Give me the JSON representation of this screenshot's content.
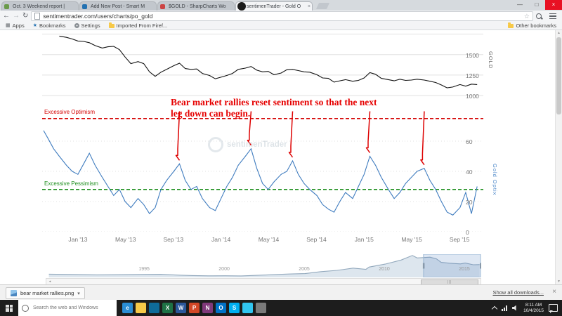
{
  "browser": {
    "tabs": [
      {
        "title": "Oct. 3 Weekend report |",
        "favicon_color": "#6a9a4a",
        "favicon_round": false,
        "active": false
      },
      {
        "title": "Add New Post - Smart M",
        "favicon_color": "#2271b1",
        "favicon_round": false,
        "active": false
      },
      {
        "title": "$GOLD - SharpCharts Wo",
        "favicon_color": "#cc4444",
        "favicon_round": false,
        "active": false
      },
      {
        "title": "sentimenTrader - Gold O",
        "favicon_color": "#1b1b1b",
        "favicon_round": true,
        "active": true
      }
    ],
    "url": "sentimentrader.com/users/charts/po_gold",
    "window_controls": {
      "minimize": "—",
      "maximize": "□",
      "close": "×"
    },
    "bookmarks_bar": {
      "items": [
        {
          "label": "Apps",
          "icon": "grid"
        },
        {
          "label": "Bookmarks",
          "icon": "star"
        },
        {
          "label": "Settings",
          "icon": "gear"
        },
        {
          "label": "Imported From Firef...",
          "icon": "folder"
        }
      ],
      "other_label": "Other bookmarks"
    }
  },
  "page": {
    "watermark": "sentimenTrader"
  },
  "chart_data": [
    {
      "id": "gold_price",
      "type": "line",
      "ylabel": "GOLD",
      "line_color": "#111111",
      "xlim": [
        2012.75,
        2015.833
      ],
      "ylim": [
        950,
        1780
      ],
      "yticks": [
        1000,
        1250,
        1500
      ],
      "grid_extra": [
        1750
      ],
      "points": [
        [
          2012.87,
          1725
        ],
        [
          2012.92,
          1710
        ],
        [
          2012.96,
          1690
        ],
        [
          2013,
          1665
        ],
        [
          2013.04,
          1660
        ],
        [
          2013.08,
          1645
        ],
        [
          2013.12,
          1610
        ],
        [
          2013.17,
          1580
        ],
        [
          2013.21,
          1595
        ],
        [
          2013.25,
          1600
        ],
        [
          2013.29,
          1560
        ],
        [
          2013.33,
          1470
        ],
        [
          2013.37,
          1390
        ],
        [
          2013.42,
          1415
        ],
        [
          2013.46,
          1390
        ],
        [
          2013.5,
          1290
        ],
        [
          2013.54,
          1235
        ],
        [
          2013.58,
          1285
        ],
        [
          2013.62,
          1320
        ],
        [
          2013.67,
          1365
        ],
        [
          2013.71,
          1395
        ],
        [
          2013.75,
          1330
        ],
        [
          2013.79,
          1320
        ],
        [
          2013.83,
          1325
        ],
        [
          2013.87,
          1270
        ],
        [
          2013.92,
          1245
        ],
        [
          2013.96,
          1205
        ],
        [
          2014,
          1225
        ],
        [
          2014.04,
          1245
        ],
        [
          2014.08,
          1270
        ],
        [
          2014.12,
          1320
        ],
        [
          2014.17,
          1335
        ],
        [
          2014.21,
          1355
        ],
        [
          2014.25,
          1310
        ],
        [
          2014.29,
          1290
        ],
        [
          2014.33,
          1295
        ],
        [
          2014.37,
          1255
        ],
        [
          2014.42,
          1275
        ],
        [
          2014.46,
          1315
        ],
        [
          2014.5,
          1320
        ],
        [
          2014.54,
          1305
        ],
        [
          2014.58,
          1290
        ],
        [
          2014.62,
          1285
        ],
        [
          2014.67,
          1255
        ],
        [
          2014.71,
          1215
        ],
        [
          2014.75,
          1210
        ],
        [
          2014.79,
          1165
        ],
        [
          2014.83,
          1180
        ],
        [
          2014.87,
          1195
        ],
        [
          2014.92,
          1175
        ],
        [
          2014.96,
          1185
        ],
        [
          2015,
          1215
        ],
        [
          2015.04,
          1280
        ],
        [
          2015.08,
          1260
        ],
        [
          2015.12,
          1210
        ],
        [
          2015.17,
          1195
        ],
        [
          2015.21,
          1180
        ],
        [
          2015.25,
          1200
        ],
        [
          2015.29,
          1185
        ],
        [
          2015.33,
          1190
        ],
        [
          2015.37,
          1200
        ],
        [
          2015.42,
          1190
        ],
        [
          2015.46,
          1175
        ],
        [
          2015.5,
          1160
        ],
        [
          2015.54,
          1130
        ],
        [
          2015.58,
          1095
        ],
        [
          2015.62,
          1105
        ],
        [
          2015.67,
          1135
        ],
        [
          2015.71,
          1115
        ],
        [
          2015.75,
          1140
        ],
        [
          2015.79,
          1135
        ]
      ]
    },
    {
      "id": "gold_optix",
      "type": "line",
      "ylabel": "Gold Optix",
      "line_color": "#3f7cbf",
      "xlim": [
        2012.75,
        2015.833
      ],
      "ylim": [
        0,
        80
      ],
      "yticks": [
        0,
        20,
        40,
        60
      ],
      "xticks": [
        {
          "x": 2013,
          "label": "Jan '13"
        },
        {
          "x": 2013.333,
          "label": "May '13"
        },
        {
          "x": 2013.667,
          "label": "Sep '13"
        },
        {
          "x": 2014,
          "label": "Jan '14"
        },
        {
          "x": 2014.333,
          "label": "May '14"
        },
        {
          "x": 2014.667,
          "label": "Sep '14"
        },
        {
          "x": 2015,
          "label": "Jan '15"
        },
        {
          "x": 2015.333,
          "label": "May '15"
        },
        {
          "x": 2015.667,
          "label": "Sep '15"
        }
      ],
      "thresholds": [
        {
          "label": "Excessive Optimism",
          "value": 75,
          "color": "#d40000"
        },
        {
          "label": "Excessive Pessimism",
          "value": 28,
          "color": "#1e8f1e"
        }
      ],
      "arrows_x": [
        2013.71,
        2014.21,
        2014.5,
        2015.04,
        2015.42
      ],
      "annotation": [
        "Bear market rallies reset sentiment so that the next",
        "leg down can begin."
      ],
      "points": [
        [
          2012.76,
          67
        ],
        [
          2012.79,
          62
        ],
        [
          2012.83,
          55
        ],
        [
          2012.87,
          50
        ],
        [
          2012.92,
          44
        ],
        [
          2012.96,
          40
        ],
        [
          2013,
          38
        ],
        [
          2013.04,
          45
        ],
        [
          2013.08,
          52
        ],
        [
          2013.12,
          44
        ],
        [
          2013.17,
          36
        ],
        [
          2013.21,
          30
        ],
        [
          2013.25,
          24
        ],
        [
          2013.29,
          28
        ],
        [
          2013.33,
          20
        ],
        [
          2013.37,
          16
        ],
        [
          2013.42,
          22
        ],
        [
          2013.46,
          18
        ],
        [
          2013.5,
          12
        ],
        [
          2013.54,
          16
        ],
        [
          2013.58,
          28
        ],
        [
          2013.62,
          34
        ],
        [
          2013.67,
          40
        ],
        [
          2013.71,
          45
        ],
        [
          2013.75,
          34
        ],
        [
          2013.79,
          28
        ],
        [
          2013.83,
          30
        ],
        [
          2013.87,
          22
        ],
        [
          2013.92,
          16
        ],
        [
          2013.96,
          14
        ],
        [
          2014,
          22
        ],
        [
          2014.04,
          30
        ],
        [
          2014.08,
          36
        ],
        [
          2014.12,
          44
        ],
        [
          2014.17,
          50
        ],
        [
          2014.21,
          55
        ],
        [
          2014.25,
          42
        ],
        [
          2014.29,
          32
        ],
        [
          2014.33,
          28
        ],
        [
          2014.37,
          33
        ],
        [
          2014.42,
          38
        ],
        [
          2014.46,
          40
        ],
        [
          2014.5,
          47
        ],
        [
          2014.54,
          38
        ],
        [
          2014.58,
          32
        ],
        [
          2014.62,
          28
        ],
        [
          2014.67,
          24
        ],
        [
          2014.71,
          18
        ],
        [
          2014.75,
          15
        ],
        [
          2014.79,
          13
        ],
        [
          2014.83,
          20
        ],
        [
          2014.87,
          26
        ],
        [
          2014.92,
          22
        ],
        [
          2014.96,
          30
        ],
        [
          2015,
          38
        ],
        [
          2015.04,
          50
        ],
        [
          2015.08,
          44
        ],
        [
          2015.12,
          36
        ],
        [
          2015.17,
          28
        ],
        [
          2015.21,
          22
        ],
        [
          2015.25,
          26
        ],
        [
          2015.29,
          32
        ],
        [
          2015.33,
          36
        ],
        [
          2015.37,
          40
        ],
        [
          2015.42,
          42
        ],
        [
          2015.46,
          34
        ],
        [
          2015.5,
          28
        ],
        [
          2015.54,
          20
        ],
        [
          2015.58,
          13
        ],
        [
          2015.62,
          11
        ],
        [
          2015.67,
          16
        ],
        [
          2015.71,
          26
        ],
        [
          2015.75,
          12
        ],
        [
          2015.79,
          30
        ]
      ]
    },
    {
      "id": "history_navigator",
      "type": "area",
      "xlim": [
        1988.8,
        2016
      ],
      "ylim": [
        150,
        1950
      ],
      "fill_color": "#dde6ee",
      "line_color": "#93a9bd",
      "selection": [
        2012.4,
        2016
      ],
      "xticks": [
        {
          "x": 1995,
          "label": "1995"
        },
        {
          "x": 2000,
          "label": "2000"
        },
        {
          "x": 2005,
          "label": "2005"
        },
        {
          "x": 2010,
          "label": "2010"
        },
        {
          "x": 2015,
          "label": "2015"
        }
      ],
      "points": [
        [
          1989,
          400
        ],
        [
          1990.5,
          380
        ],
        [
          1992,
          345
        ],
        [
          1993.5,
          360
        ],
        [
          1995,
          385
        ],
        [
          1996,
          390
        ],
        [
          1997,
          330
        ],
        [
          1998,
          293
        ],
        [
          1999,
          270
        ],
        [
          2000,
          278
        ],
        [
          2001,
          265
        ],
        [
          2002,
          310
        ],
        [
          2003,
          363
        ],
        [
          2004,
          410
        ],
        [
          2005,
          445
        ],
        [
          2006,
          600
        ],
        [
          2007,
          697
        ],
        [
          2008,
          872
        ],
        [
          2008.8,
          780
        ],
        [
          2009,
          950
        ],
        [
          2010,
          1180
        ],
        [
          2011,
          1500
        ],
        [
          2011.7,
          1850
        ],
        [
          2012,
          1660
        ],
        [
          2012.8,
          1720
        ],
        [
          2013.2,
          1590
        ],
        [
          2013.5,
          1320
        ],
        [
          2014,
          1250
        ],
        [
          2014.7,
          1200
        ],
        [
          2015,
          1260
        ],
        [
          2015.5,
          1130
        ],
        [
          2015.9,
          1140
        ]
      ]
    }
  ],
  "download_bar": {
    "filename": "bear market rallies.png",
    "show_all_label": "Show all downloads..."
  },
  "taskbar": {
    "search_placeholder": "Search the web and Windows",
    "apps": [
      {
        "name": "edge",
        "color": "#2a8dd4",
        "glyph": "e"
      },
      {
        "name": "file-explorer",
        "color": "#f7c948",
        "glyph": ""
      },
      {
        "name": "store",
        "color": "#0f6b99",
        "glyph": ""
      },
      {
        "name": "excel",
        "color": "#1e7145",
        "glyph": "X"
      },
      {
        "name": "word",
        "color": "#2b579a",
        "glyph": "W"
      },
      {
        "name": "powerpoint",
        "color": "#d24726",
        "glyph": "P"
      },
      {
        "name": "onenote",
        "color": "#80397b",
        "glyph": "N"
      },
      {
        "name": "outlook",
        "color": "#0072c6",
        "glyph": "O"
      },
      {
        "name": "skype",
        "color": "#00aff0",
        "glyph": "S"
      },
      {
        "name": "photos",
        "color": "#31c5f0",
        "glyph": ""
      },
      {
        "name": "snipping-tool",
        "color": "#7a7a7a",
        "glyph": ""
      }
    ],
    "clock": {
      "time": "8:11 AM",
      "date": "10/4/2015"
    }
  }
}
